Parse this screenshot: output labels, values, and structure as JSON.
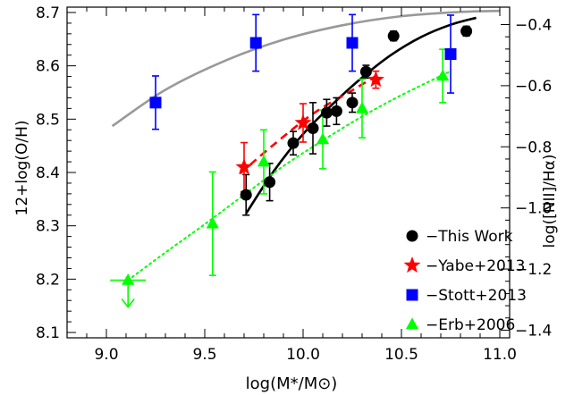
{
  "chart_data": {
    "type": "scatter",
    "xlabel": "log(M*/M⊙)",
    "ylabel": "12+log(O/H)",
    "ylabel_right": "log([NII]/Hα)",
    "xlim": [
      8.8,
      11.05
    ],
    "ylim": [
      8.09,
      8.71
    ],
    "ylim_right": [
      -1.425,
      -0.343
    ],
    "x_ticks": [
      9.0,
      9.5,
      10.0,
      10.5,
      11.0
    ],
    "x_tick_labels": [
      "9.0",
      "9.5",
      "10.0",
      "10.5",
      "11.0"
    ],
    "y_ticks": [
      8.1,
      8.2,
      8.3,
      8.4,
      8.5,
      8.6,
      8.7
    ],
    "y_tick_labels": [
      "8.1",
      "8.2",
      "8.3",
      "8.4",
      "8.5",
      "8.6",
      "8.7"
    ],
    "y_right_ticks": [
      -1.4,
      -1.2,
      -1.0,
      -0.8,
      -0.6,
      -0.4
    ],
    "y_right_tick_labels": [
      "-1.4",
      "-1.2",
      "-1.0",
      "-0.8",
      "-0.6",
      "-0.4"
    ],
    "grid": false,
    "legend_position": "bottom-right",
    "series": [
      {
        "name": "This Work",
        "color": "#000000",
        "marker": "circle",
        "x": [
          9.71,
          9.83,
          9.95,
          10.05,
          10.12,
          10.17,
          10.25,
          10.32,
          10.46,
          10.83
        ],
        "y": [
          8.358,
          8.382,
          8.455,
          8.483,
          8.512,
          8.515,
          8.531,
          8.589,
          8.656,
          8.665
        ],
        "err": [
          0.038,
          0.035,
          0.022,
          0.048,
          0.025,
          0.025,
          0.018,
          0.012,
          0.009,
          0.009
        ]
      },
      {
        "name": "Yabe+2013",
        "color": "#ff0000",
        "marker": "star",
        "x": [
          9.7,
          10.0,
          10.37
        ],
        "y": [
          8.41,
          8.493,
          8.574
        ],
        "err": [
          0.046,
          0.036,
          0.016
        ]
      },
      {
        "name": "Stott+2013",
        "color": "#0000ff",
        "marker": "square",
        "x": [
          9.25,
          9.76,
          10.25,
          10.75
        ],
        "y": [
          8.531,
          8.643,
          8.643,
          8.622
        ],
        "err": [
          0.05,
          0.053,
          0.053,
          0.073
        ]
      },
      {
        "name": "Erb+2006",
        "color": "#00ff00",
        "marker": "triangle",
        "x": [
          9.11,
          9.54,
          9.8,
          10.1,
          10.3,
          10.71
        ],
        "y": [
          8.198,
          8.304,
          8.42,
          8.462,
          8.52,
          8.581
        ],
        "err": [
          0.0,
          0.097,
          0.06,
          0.055,
          0.055,
          0.05
        ],
        "upper_limit": [
          true,
          false,
          false,
          false,
          false,
          false
        ]
      }
    ],
    "curves": [
      {
        "color": "#999999",
        "style": "solid",
        "x": [
          9.03,
          9.3,
          9.6,
          9.9,
          10.2,
          10.5,
          10.8,
          11.0
        ],
        "y": [
          8.487,
          8.555,
          8.609,
          8.649,
          8.676,
          8.693,
          8.701,
          8.703
        ]
      },
      {
        "color": "#000000",
        "style": "solid",
        "x": [
          9.71,
          9.85,
          10.0,
          10.15,
          10.3,
          10.45,
          10.6,
          10.75,
          10.88
        ],
        "y": [
          8.323,
          8.402,
          8.472,
          8.528,
          8.578,
          8.621,
          8.654,
          8.677,
          8.69
        ]
      },
      {
        "color": "#ff0000",
        "style": "dashed",
        "x": [
          9.68,
          9.85,
          10.05,
          10.25,
          10.38
        ],
        "y": [
          8.398,
          8.452,
          8.51,
          8.554,
          8.583
        ]
      },
      {
        "color": "#00ff00",
        "style": "dotted",
        "x": [
          9.11,
          9.3,
          9.5,
          9.7,
          9.9,
          10.1,
          10.3,
          10.5,
          10.75
        ],
        "y": [
          8.198,
          8.25,
          8.303,
          8.358,
          8.412,
          8.46,
          8.505,
          8.545,
          8.59
        ]
      }
    ]
  }
}
